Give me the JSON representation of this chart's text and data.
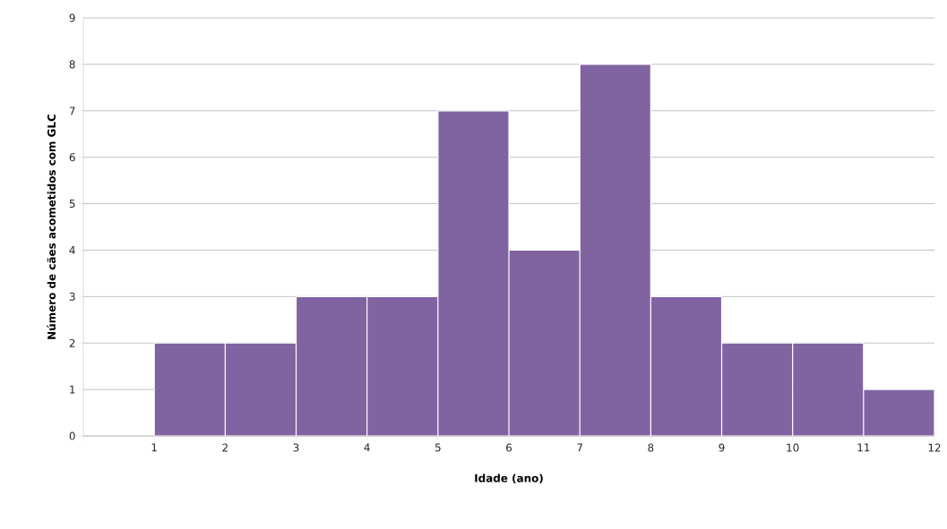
{
  "chart_data": {
    "type": "histogram",
    "xlabel": "Idade (ano)",
    "ylabel": "Número de cães acometidos  com GLC",
    "bins": [
      1,
      2,
      3,
      4,
      5,
      6,
      7,
      8,
      9,
      10,
      11,
      12
    ],
    "values": [
      2,
      2,
      3,
      3,
      7,
      4,
      8,
      3,
      2,
      2,
      1
    ],
    "color": "#8064a2",
    "xlim": [
      0,
      12
    ],
    "xticks": [
      {
        "value": 0,
        "label": null
      },
      1,
      2,
      3,
      4,
      5,
      6,
      7,
      8,
      9,
      10,
      11,
      12
    ],
    "ylim": [
      0,
      9
    ],
    "yticks": [
      0,
      1,
      2,
      3,
      4,
      5,
      6,
      7,
      8,
      9
    ],
    "grid": "y"
  }
}
